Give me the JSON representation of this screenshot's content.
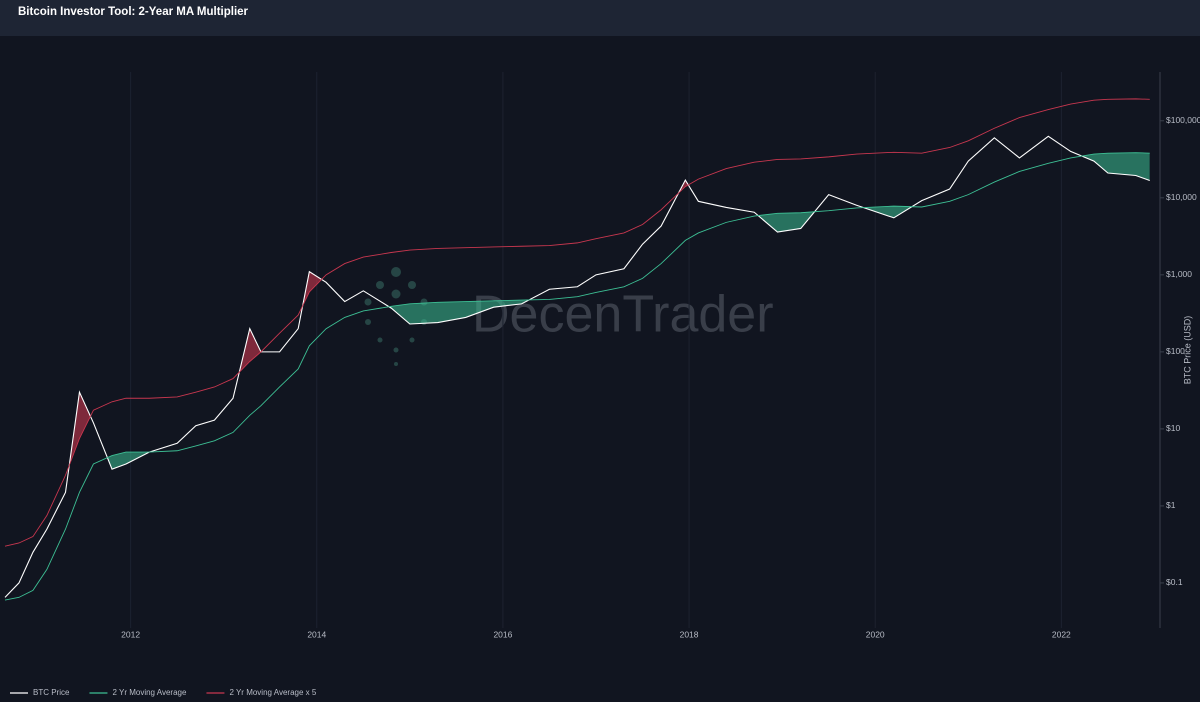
{
  "chart_data": {
    "type": "line",
    "title": "Bitcoin Investor Tool: 2-Year MA Multiplier",
    "watermark": "DecenTrader",
    "y_label": "BTC Price (USD)",
    "yscale": "log",
    "grid": true,
    "legend": "bottom-left",
    "xlim": [
      2010.65,
      2023.06
    ],
    "xticks": [
      2012,
      2014,
      2016,
      2018,
      2020,
      2022
    ],
    "ylim": [
      0.026,
      430000
    ],
    "yticks": [
      {
        "value": 0.1,
        "label": "$0.1"
      },
      {
        "value": 1,
        "label": "$1"
      },
      {
        "value": 10,
        "label": "$10"
      },
      {
        "value": 100,
        "label": "$100"
      },
      {
        "value": 1000,
        "label": "$1,000"
      },
      {
        "value": 10000,
        "label": "$10,000"
      },
      {
        "value": 100000,
        "label": "$100,000"
      }
    ],
    "x": [
      2010.65,
      2010.8,
      2010.95,
      2011.1,
      2011.3,
      2011.45,
      2011.6,
      2011.8,
      2011.95,
      2012.2,
      2012.5,
      2012.7,
      2012.9,
      2013.1,
      2013.28,
      2013.4,
      2013.6,
      2013.8,
      2013.92,
      2014.1,
      2014.3,
      2014.5,
      2014.8,
      2015.0,
      2015.3,
      2015.6,
      2015.9,
      2016.2,
      2016.5,
      2016.8,
      2017.0,
      2017.3,
      2017.5,
      2017.7,
      2017.96,
      2018.1,
      2018.4,
      2018.7,
      2018.95,
      2019.2,
      2019.5,
      2019.8,
      2020.2,
      2020.5,
      2020.8,
      2021.0,
      2021.28,
      2021.55,
      2021.86,
      2022.1,
      2022.35,
      2022.5,
      2022.8,
      2022.95
    ],
    "series": [
      {
        "name": "BTC Price",
        "color": "#ffffff",
        "values": [
          0.065,
          0.1,
          0.25,
          0.5,
          1.5,
          30,
          12,
          3,
          3.5,
          5,
          6.5,
          11,
          13,
          25,
          200,
          100,
          100,
          200,
          1100,
          800,
          450,
          620,
          370,
          230,
          240,
          280,
          380,
          420,
          650,
          700,
          1000,
          1200,
          2500,
          4300,
          17000,
          9000,
          7500,
          6500,
          3600,
          4000,
          11000,
          8000,
          5500,
          9200,
          13000,
          30000,
          60000,
          33000,
          63000,
          40000,
          30000,
          21000,
          19500,
          16800
        ]
      },
      {
        "name": "2 Yr Moving Average",
        "color": "#3dbf94",
        "values": [
          0.06,
          0.065,
          0.08,
          0.15,
          0.5,
          1.5,
          3.5,
          4.5,
          5,
          5,
          5.2,
          6,
          7,
          9,
          15,
          20,
          35,
          60,
          120,
          200,
          280,
          340,
          390,
          420,
          440,
          450,
          460,
          470,
          480,
          520,
          590,
          700,
          900,
          1400,
          2800,
          3500,
          4800,
          5800,
          6300,
          6400,
          6800,
          7400,
          7800,
          7600,
          9000,
          11000,
          16000,
          22000,
          28000,
          33000,
          37000,
          38000,
          38500,
          38000
        ]
      },
      {
        "name": "2 Yr Moving Average x 5",
        "color": "#c8374f",
        "values": [
          0.3,
          0.33,
          0.4,
          0.75,
          2.5,
          7.5,
          17.5,
          22.5,
          25,
          25,
          26,
          30,
          35,
          45,
          75,
          100,
          175,
          300,
          600,
          1000,
          1400,
          1700,
          1950,
          2100,
          2200,
          2250,
          2300,
          2350,
          2400,
          2600,
          2950,
          3500,
          4500,
          7000,
          14000,
          17500,
          24000,
          29000,
          31500,
          32000,
          34000,
          37000,
          39000,
          38000,
          45000,
          55000,
          80000,
          110000,
          140000,
          165000,
          185000,
          190000,
          192500,
          190000
        ]
      }
    ]
  }
}
